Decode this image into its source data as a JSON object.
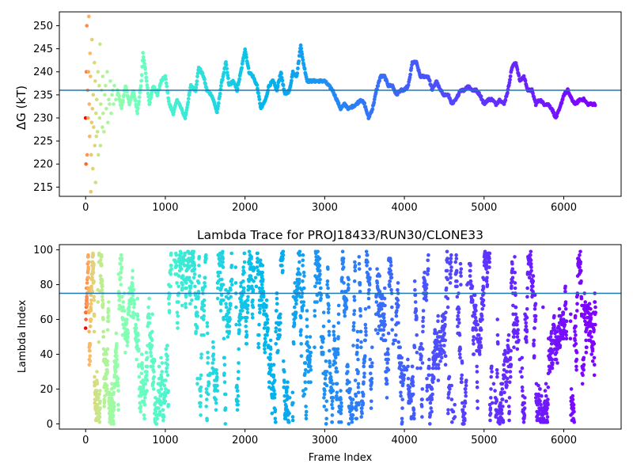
{
  "chart_data": [
    {
      "type": "scatter",
      "title": "",
      "xlabel": "",
      "ylabel": "ΔG (kT)",
      "xlim": [
        -330,
        6720
      ],
      "ylim": [
        213,
        253
      ],
      "xticks": [
        0,
        1000,
        2000,
        3000,
        4000,
        5000,
        6000
      ],
      "yticks": [
        215,
        220,
        225,
        230,
        235,
        240,
        245,
        250
      ],
      "hline": 236,
      "colormap": "rainbow (red at start, violet at end)",
      "colors": {
        "hline": "#1f77b4",
        "start": "#ff0000",
        "end": "#8000ff"
      },
      "x_max": 6400,
      "early_scatter": [
        [
          0,
          230
        ],
        [
          5,
          220
        ],
        [
          10,
          240
        ],
        [
          15,
          250
        ],
        [
          20,
          222
        ],
        [
          25,
          236
        ],
        [
          30,
          230
        ],
        [
          35,
          240
        ],
        [
          40,
          252
        ],
        [
          45,
          233
        ],
        [
          50,
          226
        ],
        [
          55,
          244
        ],
        [
          60,
          239
        ],
        [
          65,
          214
        ],
        [
          70,
          222
        ],
        [
          75,
          229
        ],
        [
          80,
          247
        ],
        [
          85,
          232
        ],
        [
          90,
          219
        ],
        [
          95,
          235
        ],
        [
          100,
          228
        ],
        [
          110,
          242
        ],
        [
          115,
          224
        ],
        [
          120,
          238
        ],
        [
          125,
          216
        ],
        [
          130,
          231
        ],
        [
          135,
          226
        ],
        [
          140,
          234
        ],
        [
          150,
          227
        ],
        [
          155,
          240
        ],
        [
          160,
          222
        ],
        [
          170,
          237
        ],
        [
          175,
          230
        ],
        [
          180,
          246
        ],
        [
          185,
          224
        ],
        [
          190,
          233
        ],
        [
          200,
          236
        ],
        [
          210,
          228
        ],
        [
          215,
          239
        ],
        [
          220,
          231
        ],
        [
          230,
          227
        ],
        [
          240,
          235
        ],
        [
          250,
          237
        ],
        [
          260,
          232
        ],
        [
          270,
          240
        ],
        [
          280,
          229
        ],
        [
          290,
          234
        ],
        [
          300,
          233
        ],
        [
          310,
          238
        ],
        [
          320,
          231
        ],
        [
          330,
          235
        ],
        [
          340,
          236
        ],
        [
          350,
          233
        ],
        [
          360,
          237
        ],
        [
          380,
          234
        ],
        [
          400,
          235
        ]
      ],
      "trace_x": [
        400,
        450,
        500,
        550,
        600,
        650,
        700,
        720,
        760,
        800,
        850,
        900,
        950,
        1000,
        1050,
        1100,
        1150,
        1200,
        1250,
        1280,
        1320,
        1380,
        1420,
        1480,
        1520,
        1580,
        1620,
        1650,
        1700,
        1760,
        1800,
        1850,
        1900,
        1960,
        2000,
        2050,
        2100,
        2150,
        2200,
        2260,
        2300,
        2350,
        2400,
        2450,
        2500,
        2560,
        2600,
        2650,
        2700,
        2720,
        2780,
        2850,
        2900,
        3000,
        3100,
        3150,
        3200,
        3250,
        3300,
        3400,
        3450,
        3500,
        3550,
        3600,
        3650,
        3700,
        3750,
        3800,
        3850,
        3900,
        3950,
        4000,
        4050,
        4100,
        4150,
        4200,
        4250,
        4300,
        4350,
        4400,
        4450,
        4500,
        4550,
        4600,
        4650,
        4700,
        4750,
        4800,
        4850,
        4900,
        4950,
        5000,
        5050,
        5100,
        5150,
        5200,
        5250,
        5300,
        5350,
        5400,
        5450,
        5500,
        5550,
        5600,
        5650,
        5700,
        5750,
        5800,
        5850,
        5900,
        5950,
        6000,
        6050,
        6100,
        6150,
        6200,
        6250,
        6300,
        6350,
        6400
      ],
      "trace_y": [
        236,
        232,
        237,
        233,
        236,
        231,
        238,
        244,
        239,
        233,
        237,
        235,
        238,
        239,
        233,
        231,
        234,
        232,
        230,
        233,
        237,
        236,
        241,
        239,
        236,
        235,
        233,
        231,
        237,
        242,
        237,
        238,
        236,
        241,
        245,
        240,
        239,
        237,
        232,
        234,
        237,
        238,
        236,
        240,
        235,
        236,
        240,
        239,
        246,
        243,
        238,
        238,
        238,
        238,
        236,
        234,
        232,
        233,
        232,
        233,
        234,
        233,
        230,
        232,
        236,
        239,
        239,
        237,
        237,
        235,
        236,
        236,
        237,
        242,
        242,
        239,
        239,
        239,
        236,
        238,
        236,
        235,
        235,
        233,
        234,
        236,
        236,
        237,
        236,
        236,
        235,
        233,
        234,
        234,
        233,
        234,
        233,
        236,
        241,
        242,
        238,
        239,
        236,
        236,
        233,
        234,
        233,
        233,
        232,
        230,
        232,
        235,
        236,
        234,
        233,
        234,
        234,
        233,
        233,
        233
      ]
    },
    {
      "type": "scatter",
      "title": "Lambda Trace for PROJ18433/RUN30/CLONE33",
      "xlabel": "Frame Index",
      "ylabel": "Lambda Index",
      "xlim": [
        -330,
        6720
      ],
      "ylim": [
        -3,
        103
      ],
      "xticks": [
        0,
        1000,
        2000,
        3000,
        4000,
        5000,
        6000
      ],
      "yticks": [
        0,
        20,
        40,
        60,
        80,
        100
      ],
      "hline": 75,
      "value_range": [
        0,
        99
      ],
      "x_max": 6400,
      "colormap": "rainbow (red at start, violet at end)",
      "colors": {
        "hline": "#1f77b4",
        "start": "#ff0000",
        "end": "#8000ff"
      },
      "gaps_x": [
        1100,
        1570,
        1860,
        2130,
        2570,
        2850,
        3620,
        3870,
        4020,
        4180,
        4620,
        4800,
        5120,
        5450,
        6060
      ]
    }
  ]
}
